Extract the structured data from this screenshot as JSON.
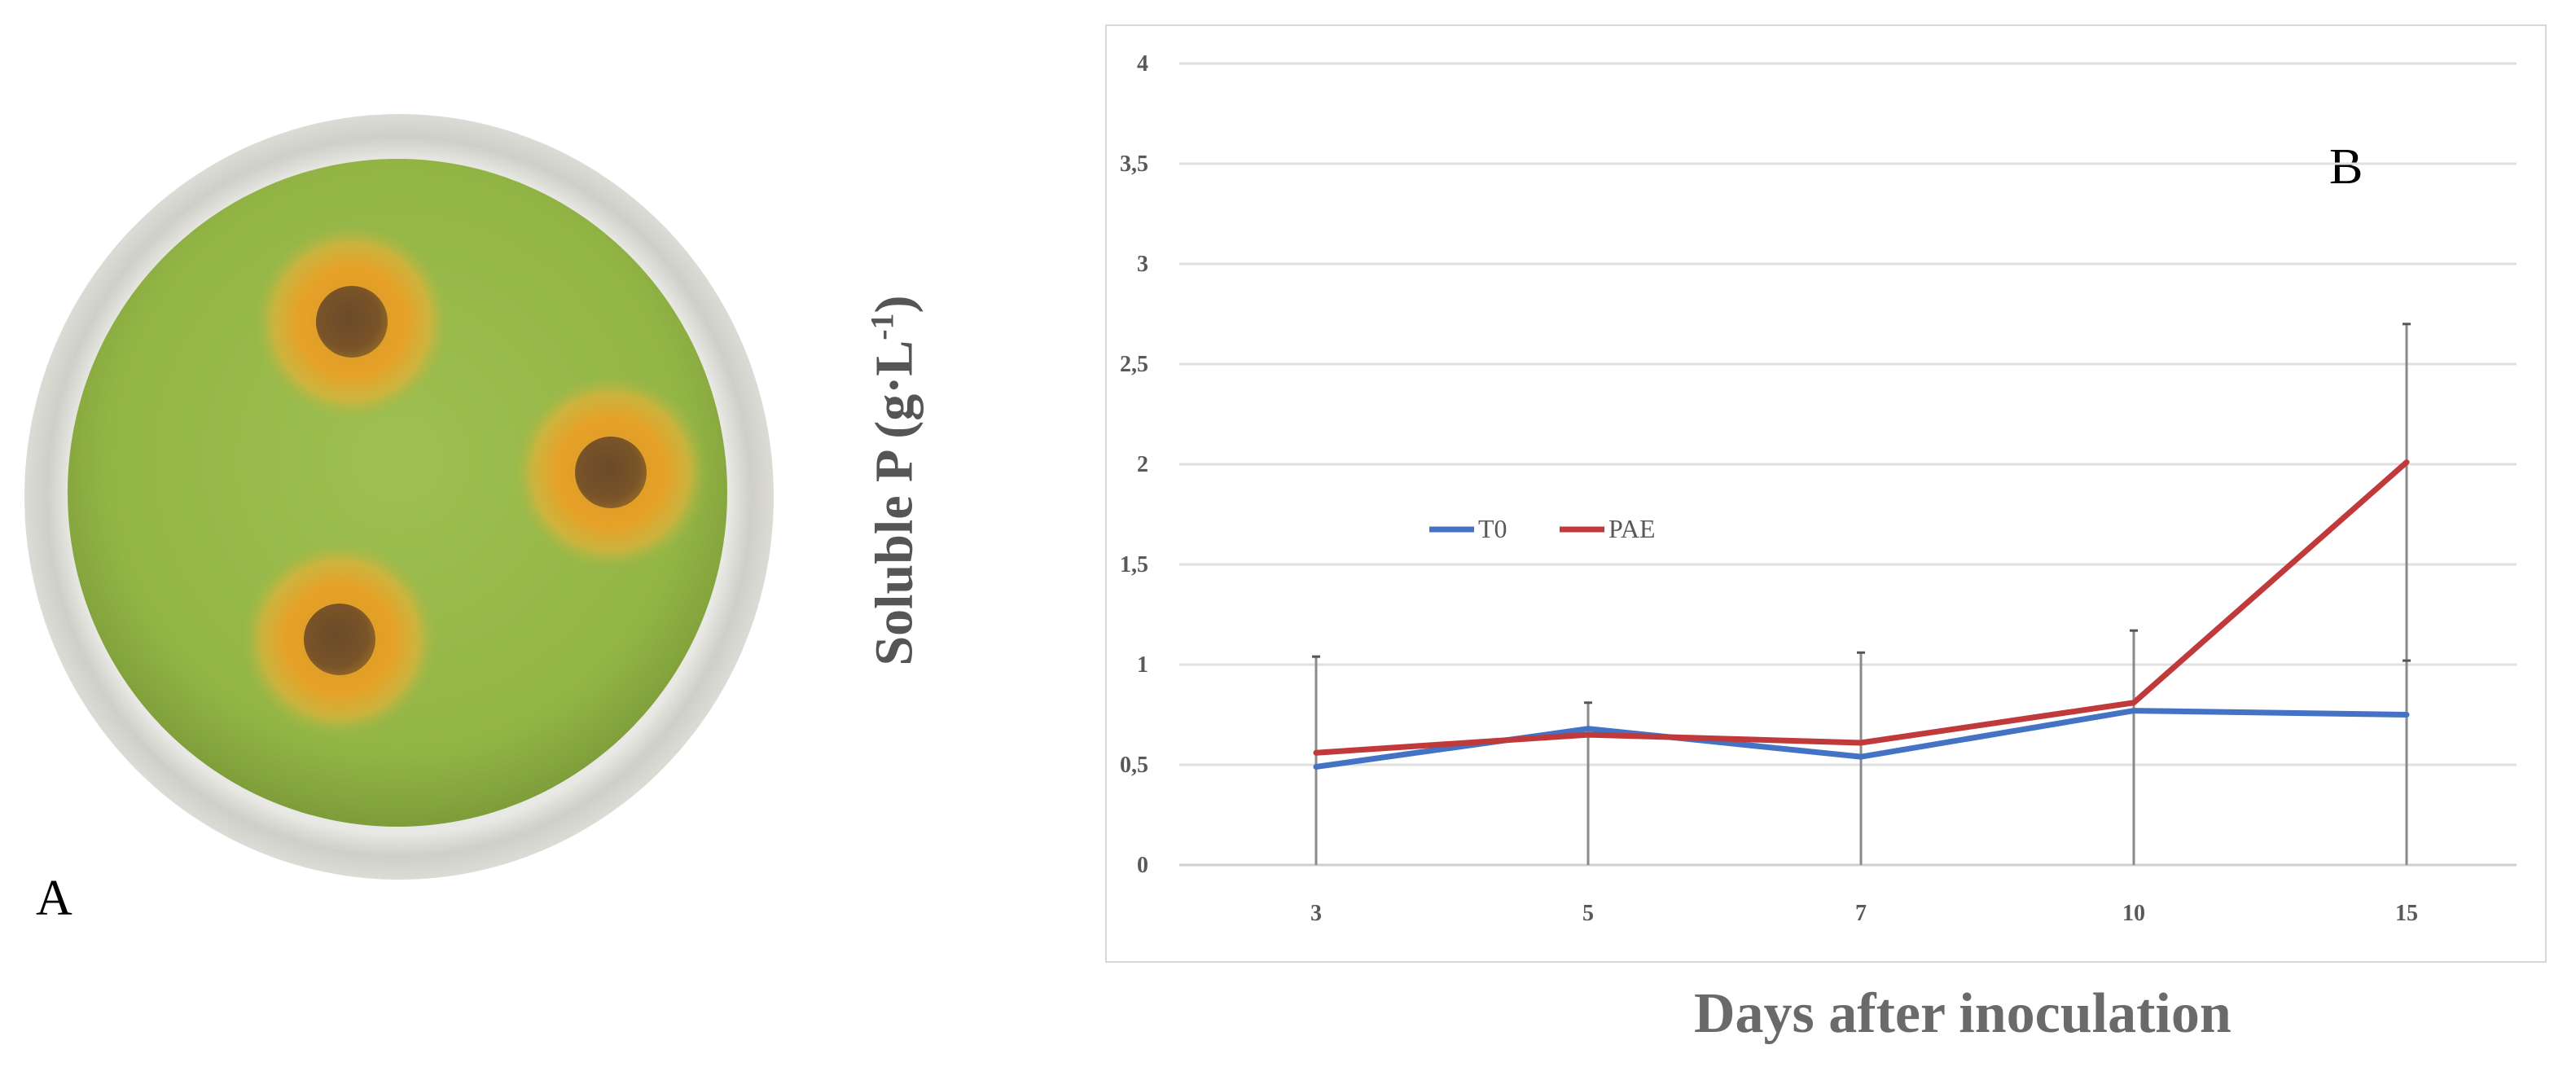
{
  "panels": {
    "a_label": "A",
    "b_label": "B"
  },
  "chart_data": {
    "type": "line",
    "categories": [
      "3",
      "5",
      "7",
      "10",
      "15"
    ],
    "ylim": [
      0,
      4
    ],
    "yticks": [
      "0",
      "0,5",
      "1",
      "1,5",
      "2",
      "2,5",
      "3",
      "3,5",
      "4"
    ],
    "ylabel_main": "Soluble P (g·L",
    "ylabel_sup": "-1",
    "ylabel_end": ")",
    "xlabel": "Days after inoculation",
    "grid": true,
    "legend_position": "center-left",
    "series": [
      {
        "name": "T0",
        "color": "#4472c4",
        "values": [
          0.49,
          0.68,
          0.54,
          0.77,
          0.75
        ]
      },
      {
        "name": "PAE",
        "color": "#c0393b",
        "values": [
          0.56,
          0.65,
          0.61,
          0.81,
          2.01
        ]
      }
    ],
    "error_bar_tops": [
      1.04,
      0.81,
      1.06,
      1.17,
      2.7
    ],
    "error_bar_bottoms": [
      0,
      0,
      0,
      0,
      0
    ]
  },
  "photo": {
    "description_icon": "petri-dish-image"
  }
}
